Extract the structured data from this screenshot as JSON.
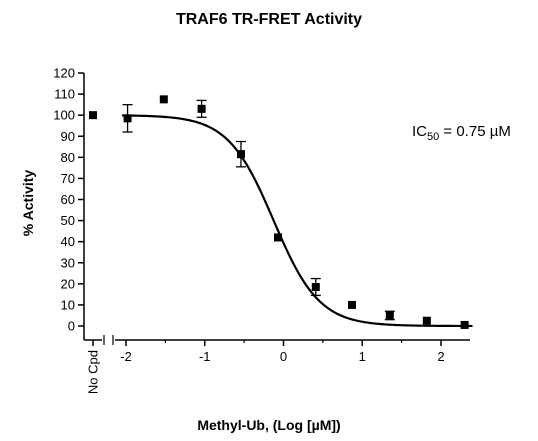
{
  "chart_data": {
    "type": "scatter",
    "title": "TRAF6 TR-FRET Activity",
    "xlabel": "Methyl-Ub, (Log [µM])",
    "ylabel": "% Activity",
    "xlim": [
      -2.05,
      2.4
    ],
    "ylim": [
      0,
      120
    ],
    "y_ticks": [
      0,
      10,
      20,
      30,
      40,
      50,
      60,
      70,
      80,
      90,
      100,
      110,
      120
    ],
    "x_ticks": [
      -2,
      -1,
      0,
      1,
      2
    ],
    "x_tick_labels": [
      "-2",
      "-1",
      "0",
      "1",
      "2"
    ],
    "no_compound_label": "No Cpd",
    "no_compound_point": {
      "y": 100
    },
    "points": [
      {
        "x": -1.98,
        "y": 98.5,
        "err": 6.5
      },
      {
        "x": -1.52,
        "y": 107.5,
        "err": 0
      },
      {
        "x": -1.04,
        "y": 103,
        "err": 4
      },
      {
        "x": -0.54,
        "y": 81.5,
        "err": 6
      },
      {
        "x": -0.07,
        "y": 42,
        "err": 0
      },
      {
        "x": 0.41,
        "y": 18.5,
        "err": 4
      },
      {
        "x": 0.87,
        "y": 10,
        "err": 0
      },
      {
        "x": 1.35,
        "y": 5,
        "err": 2
      },
      {
        "x": 1.82,
        "y": 2.5,
        "err": 0
      },
      {
        "x": 2.3,
        "y": 0.5,
        "err": 0
      }
    ],
    "fit": {
      "top": 100,
      "bottom": 0,
      "log_ic50": -0.125,
      "hill": -1.5
    },
    "annotation": {
      "prefix": "IC",
      "subscript": "50",
      "suffix": " = 0.75 µM"
    },
    "grid": false,
    "legend": "none"
  }
}
